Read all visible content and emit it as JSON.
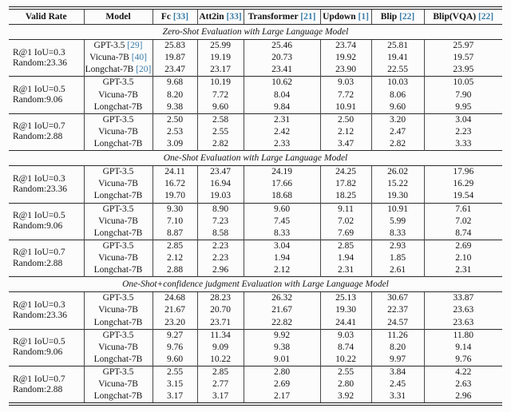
{
  "colors": {
    "citation": "#3a7ca8",
    "text": "#141414",
    "rule": "#1a1a1a"
  },
  "table": {
    "columns": [
      {
        "label": "Valid Rate"
      },
      {
        "label": "Model"
      },
      {
        "label": "Fc",
        "cite": "[33]"
      },
      {
        "label": "Att2in",
        "cite": "[33]"
      },
      {
        "label": "Transformer",
        "cite": "[21]"
      },
      {
        "label": "Updown",
        "cite": "[1]"
      },
      {
        "label": "Blip",
        "cite": "[22]"
      },
      {
        "label": "Blip(VQA)",
        "cite": "[22]"
      }
    ],
    "sections": [
      {
        "title": "Zero-Shot Evaluation with Large Language Model",
        "groups": [
          {
            "valid_rate": [
              "R@1 IoU=0.3",
              "Random:23.36"
            ],
            "rows": [
              {
                "model": "GPT-3.5",
                "cite": "[29]",
                "values": [
                  "25.83",
                  "25.99",
                  "25.46",
                  "23.74",
                  "25.81",
                  "25.97"
                ]
              },
              {
                "model": "Vicuna-7B",
                "cite": "[40]",
                "values": [
                  "19.87",
                  "19.19",
                  "20.73",
                  "19.92",
                  "19.41",
                  "19.57"
                ]
              },
              {
                "model": "Longchat-7B",
                "cite": "[20]",
                "values": [
                  "23.47",
                  "23.17",
                  "23.41",
                  "23.90",
                  "22.55",
                  "23.95"
                ]
              }
            ]
          },
          {
            "valid_rate": [
              "R@1 IoU=0.5",
              "Random:9.06"
            ],
            "rows": [
              {
                "model": "GPT-3.5",
                "values": [
                  "9.68",
                  "10.19",
                  "10.62",
                  "9.03",
                  "10.03",
                  "10.05"
                ]
              },
              {
                "model": "Vicuna-7B",
                "values": [
                  "8.20",
                  "7.72",
                  "8.04",
                  "7.72",
                  "8.06",
                  "7.90"
                ]
              },
              {
                "model": "Longchat-7B",
                "values": [
                  "9.38",
                  "9.60",
                  "9.84",
                  "10.91",
                  "9.60",
                  "9.95"
                ]
              }
            ]
          },
          {
            "valid_rate": [
              "R@1 IoU=0.7",
              "Random:2.88"
            ],
            "rows": [
              {
                "model": "GPT-3.5",
                "values": [
                  "2.50",
                  "2.58",
                  "2.31",
                  "2.50",
                  "3.20",
                  "3.04"
                ]
              },
              {
                "model": "Vicuna-7B",
                "values": [
                  "2.53",
                  "2.55",
                  "2.42",
                  "2.12",
                  "2.47",
                  "2.23"
                ]
              },
              {
                "model": "Longchat-7B",
                "values": [
                  "3.09",
                  "2.82",
                  "2.33",
                  "3.47",
                  "2.82",
                  "3.33"
                ]
              }
            ]
          }
        ]
      },
      {
        "title": "One-Shot Evaluation with Large Language Model",
        "groups": [
          {
            "valid_rate": [
              "R@1 IoU=0.3",
              "Random:23.36"
            ],
            "rows": [
              {
                "model": "GPT-3.5",
                "values": [
                  "24.11",
                  "23.47",
                  "24.19",
                  "24.25",
                  "26.02",
                  "17.96"
                ]
              },
              {
                "model": "Vicuna-7B",
                "values": [
                  "16.72",
                  "16.94",
                  "17.66",
                  "17.82",
                  "15.22",
                  "16.29"
                ]
              },
              {
                "model": "Longchat-7B",
                "values": [
                  "19.70",
                  "19.03",
                  "18.68",
                  "18.25",
                  "19.30",
                  "19.54"
                ]
              }
            ]
          },
          {
            "valid_rate": [
              "R@1 IoU=0.5",
              "Random:9.06"
            ],
            "rows": [
              {
                "model": "GPT-3.5",
                "values": [
                  "9.30",
                  "8.90",
                  "9.60",
                  "9.11",
                  "10.91",
                  "7.61"
                ]
              },
              {
                "model": "Vicuna-7B",
                "values": [
                  "7.10",
                  "7.23",
                  "7.45",
                  "7.02",
                  "5.99",
                  "7.02"
                ]
              },
              {
                "model": "Longchat-7B",
                "values": [
                  "8.87",
                  "8.58",
                  "8.33",
                  "7.69",
                  "8.33",
                  "8.74"
                ]
              }
            ]
          },
          {
            "valid_rate": [
              "R@1 IoU=0.7",
              "Random:2.88"
            ],
            "rows": [
              {
                "model": "GPT-3.5",
                "values": [
                  "2.85",
                  "2.23",
                  "3.04",
                  "2.85",
                  "2.93",
                  "2.69"
                ]
              },
              {
                "model": "Vicuna-7B",
                "values": [
                  "2.12",
                  "2.23",
                  "1.94",
                  "1.94",
                  "1.85",
                  "2.10"
                ]
              },
              {
                "model": "Longchat-7B",
                "values": [
                  "2.88",
                  "2.96",
                  "2.12",
                  "2.31",
                  "2.61",
                  "2.31"
                ]
              }
            ]
          }
        ]
      },
      {
        "title": "One-Shot+confidence judgment Evaluation with Large Language Model",
        "groups": [
          {
            "valid_rate": [
              "R@1 IoU=0.3",
              "Random:23.36"
            ],
            "rows": [
              {
                "model": "GPT-3.5",
                "values": [
                  "24.68",
                  "28.23",
                  "26.32",
                  "25.13",
                  "30.67",
                  "33.87"
                ]
              },
              {
                "model": "Vicuna-7B",
                "values": [
                  "21.67",
                  "20.70",
                  "21.67",
                  "19.30",
                  "22.37",
                  "23.63"
                ]
              },
              {
                "model": "Longchat-7B",
                "values": [
                  "23.20",
                  "23.71",
                  "22.82",
                  "24.41",
                  "24.57",
                  "23.63"
                ]
              }
            ]
          },
          {
            "valid_rate": [
              "R@1 IoU=0.5",
              "Random:9.06"
            ],
            "rows": [
              {
                "model": "GPT-3.5",
                "values": [
                  "9.27",
                  "11.34",
                  "9.92",
                  "9.03",
                  "11.26",
                  "11.80"
                ]
              },
              {
                "model": "Vicuna-7B",
                "values": [
                  "9.76",
                  "9.09",
                  "9.38",
                  "8.74",
                  "8.20",
                  "9.14"
                ]
              },
              {
                "model": "Longchat-7B",
                "values": [
                  "9.60",
                  "10.22",
                  "9.01",
                  "10.22",
                  "9.97",
                  "9.76"
                ]
              }
            ]
          },
          {
            "valid_rate": [
              "R@1 IoU=0.7",
              "Random:2.88"
            ],
            "rows": [
              {
                "model": "GPT-3.5",
                "values": [
                  "2.55",
                  "2.85",
                  "2.80",
                  "2.55",
                  "3.84",
                  "4.22"
                ]
              },
              {
                "model": "Vicuna-7B",
                "values": [
                  "3.15",
                  "2.77",
                  "2.69",
                  "2.80",
                  "2.45",
                  "2.63"
                ]
              },
              {
                "model": "Longchat-7B",
                "values": [
                  "3.17",
                  "3.17",
                  "2.17",
                  "3.92",
                  "3.31",
                  "2.96"
                ]
              }
            ]
          }
        ]
      }
    ]
  }
}
